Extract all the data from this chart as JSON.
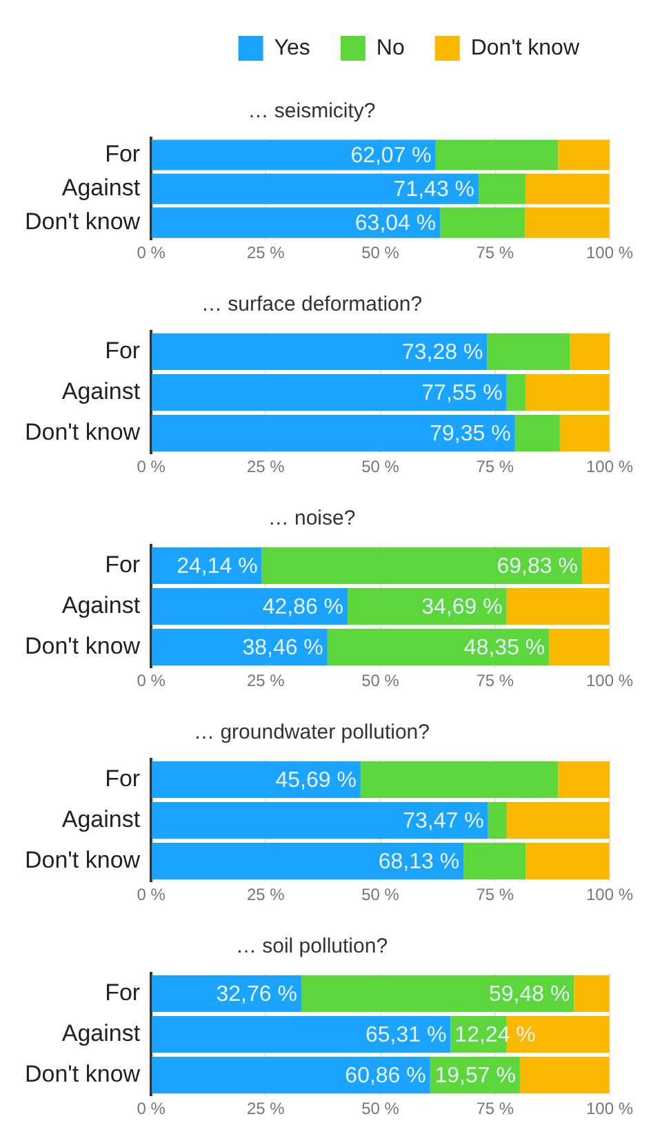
{
  "chart_data": [
    {
      "type": "bar",
      "orientation": "horizontal",
      "stacked": true,
      "title": "… seismicity?",
      "categories": [
        "For",
        "Against",
        "Don't know"
      ],
      "legend": "top",
      "grid": "x",
      "xlim": [
        0,
        100
      ],
      "xticks": [
        {
          "value": 0,
          "label": "0 %"
        },
        {
          "value": 25,
          "label": "25 %"
        },
        {
          "value": 50,
          "label": "50 %"
        },
        {
          "value": 75,
          "label": "75 %"
        },
        {
          "value": 100,
          "label": "100 %"
        }
      ],
      "series": [
        {
          "name": "Yes",
          "color": "#1aa3ff",
          "values": [
            62.07,
            71.43,
            63.04
          ],
          "value_labels": [
            "62,07 %",
            "71,43 %",
            "63,04 %"
          ]
        },
        {
          "name": "No",
          "color": "#5cd63a",
          "values": [
            26.7,
            10.2,
            18.5
          ],
          "value_labels": [
            null,
            null,
            null
          ]
        },
        {
          "name": "Don't know",
          "color": "#fbb800",
          "values": [
            11.2,
            18.3,
            18.4
          ],
          "value_labels": [
            null,
            null,
            null
          ]
        }
      ]
    },
    {
      "type": "bar",
      "orientation": "horizontal",
      "stacked": true,
      "title": "… surface deformation?",
      "categories": [
        "For",
        "Against",
        "Don't know"
      ],
      "grid": "x",
      "xlim": [
        0,
        100
      ],
      "xticks": [
        {
          "value": 0,
          "label": "0 %"
        },
        {
          "value": 25,
          "label": "25 %"
        },
        {
          "value": 50,
          "label": "50 %"
        },
        {
          "value": 75,
          "label": "75 %"
        },
        {
          "value": 100,
          "label": "100 %"
        }
      ],
      "series": [
        {
          "color": "#1aa3ff",
          "values": [
            73.28,
            77.55,
            79.35
          ],
          "value_labels": [
            "73,28 %",
            "77,55 %",
            "79,35 %"
          ]
        },
        {
          "color": "#5cd63a",
          "values": [
            18.1,
            4.1,
            9.8
          ],
          "value_labels": [
            null,
            null,
            null
          ]
        },
        {
          "color": "#fbb800",
          "values": [
            8.6,
            18.3,
            10.8
          ],
          "value_labels": [
            null,
            null,
            null
          ]
        }
      ]
    },
    {
      "type": "bar",
      "orientation": "horizontal",
      "stacked": true,
      "title": "… noise?",
      "categories": [
        "For",
        "Against",
        "Don't know"
      ],
      "grid": "x",
      "xlim": [
        0,
        100
      ],
      "xticks": [
        {
          "value": 0,
          "label": "0 %"
        },
        {
          "value": 25,
          "label": "25 %"
        },
        {
          "value": 50,
          "label": "50 %"
        },
        {
          "value": 75,
          "label": "75 %"
        },
        {
          "value": 100,
          "label": "100 %"
        }
      ],
      "series": [
        {
          "color": "#1aa3ff",
          "values": [
            24.14,
            42.86,
            38.46
          ],
          "value_labels": [
            "24,14 %",
            "42,86 %",
            "38,46 %"
          ]
        },
        {
          "color": "#5cd63a",
          "values": [
            69.83,
            34.69,
            48.35
          ],
          "value_labels": [
            "69,83 %",
            "34,69 %",
            "48,35 %"
          ]
        },
        {
          "color": "#fbb800",
          "values": [
            6.0,
            22.4,
            13.1
          ],
          "value_labels": [
            null,
            null,
            null
          ]
        }
      ]
    },
    {
      "type": "bar",
      "orientation": "horizontal",
      "stacked": true,
      "title": "… groundwater pollution?",
      "categories": [
        "For",
        "Against",
        "Don't know"
      ],
      "grid": "x",
      "xlim": [
        0,
        100
      ],
      "xticks": [
        {
          "value": 0,
          "label": "0 %"
        },
        {
          "value": 25,
          "label": "25 %"
        },
        {
          "value": 50,
          "label": "50 %"
        },
        {
          "value": 75,
          "label": "75 %"
        },
        {
          "value": 100,
          "label": "100 %"
        }
      ],
      "series": [
        {
          "color": "#1aa3ff",
          "values": [
            45.69,
            73.47,
            68.13
          ],
          "value_labels": [
            "45,69 %",
            "73,47 %",
            "68,13 %"
          ]
        },
        {
          "color": "#5cd63a",
          "values": [
            43.1,
            4.1,
            13.6
          ],
          "value_labels": [
            null,
            null,
            null
          ]
        },
        {
          "color": "#fbb800",
          "values": [
            11.2,
            22.4,
            18.2
          ],
          "value_labels": [
            null,
            null,
            null
          ]
        }
      ]
    },
    {
      "type": "bar",
      "orientation": "horizontal",
      "stacked": true,
      "title": "… soil pollution?",
      "categories": [
        "For",
        "Against",
        "Don't know"
      ],
      "grid": "x",
      "xlim": [
        0,
        100
      ],
      "xticks": [
        {
          "value": 0,
          "label": "0 %"
        },
        {
          "value": 25,
          "label": "25 %"
        },
        {
          "value": 50,
          "label": "50 %"
        },
        {
          "value": 75,
          "label": "75 %"
        },
        {
          "value": 100,
          "label": "100 %"
        }
      ],
      "series": [
        {
          "color": "#1aa3ff",
          "values": [
            32.76,
            65.31,
            60.86
          ],
          "value_labels": [
            "32,76 %",
            "65,31 %",
            "60,86 %"
          ]
        },
        {
          "color": "#5cd63a",
          "values": [
            59.48,
            12.24,
            19.57
          ],
          "value_labels": [
            "59,48 %",
            "12,24 %",
            "19,57 %"
          ]
        },
        {
          "color": "#fbb800",
          "values": [
            7.7,
            22.4,
            19.5
          ],
          "value_labels": [
            null,
            null,
            null
          ]
        }
      ]
    }
  ]
}
